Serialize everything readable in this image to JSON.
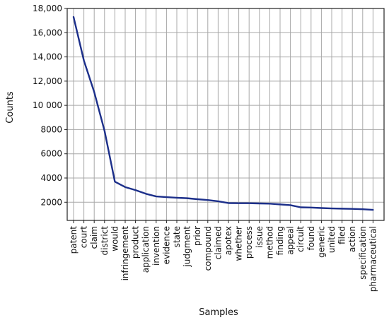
{
  "chart_data": {
    "type": "line",
    "title": "",
    "xlabel": "Samples",
    "ylabel": "Counts",
    "categories": [
      "patent",
      "court",
      "claim",
      "district",
      "would",
      "infringement",
      "product",
      "application",
      "invention",
      "evidence",
      "state",
      "judgment",
      "prior",
      "compound",
      "claimed",
      "apotex",
      "whether",
      "process",
      "issue",
      "method",
      "finding",
      "appeal",
      "circuit",
      "found",
      "generic",
      "united",
      "filed",
      "action",
      "specification",
      "pharmaceutical"
    ],
    "series": [
      {
        "values": [
          17300,
          13700,
          11100,
          7900,
          3700,
          3250,
          3000,
          2700,
          2480,
          2420,
          2370,
          2330,
          2250,
          2180,
          2080,
          1930,
          1920,
          1920,
          1900,
          1880,
          1820,
          1760,
          1580,
          1560,
          1520,
          1490,
          1470,
          1450,
          1420,
          1370
        ]
      }
    ],
    "ylim": [
      500,
      18000
    ],
    "yticks": [
      2000,
      4000,
      6000,
      8000,
      10000,
      12000,
      14000,
      16000,
      18000
    ],
    "ytick_labels": [
      "2000",
      "4000",
      "6000",
      "8000",
      "10 000",
      "12,000",
      "14,000",
      "16,000",
      "18,000"
    ],
    "grid": true,
    "line_color": "#1c2f8a",
    "grid_color": "#a8a8a8",
    "axis_color": "#222222"
  }
}
